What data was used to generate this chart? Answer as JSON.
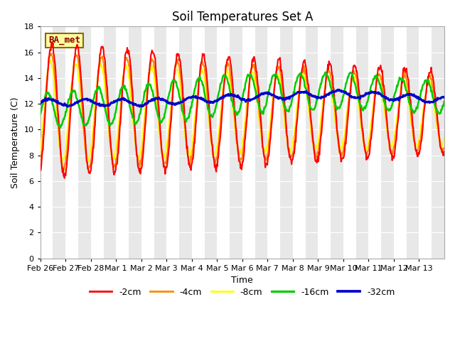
{
  "title": "Soil Temperatures Set A",
  "xlabel": "Time",
  "ylabel": "Soil Temperature (C)",
  "ylim": [
    0,
    18
  ],
  "yticks": [
    0,
    2,
    4,
    6,
    8,
    10,
    12,
    14,
    16,
    18
  ],
  "date_labels": [
    "Feb 26",
    "Feb 27",
    "Feb 28",
    "Mar 1",
    "Mar 2",
    "Mar 3",
    "Mar 4",
    "Mar 5",
    "Mar 6",
    "Mar 7",
    "Mar 8",
    "Mar 9",
    "Mar 10",
    "Mar 11",
    "Mar 12",
    "Mar 13"
  ],
  "site_label": "BA_met",
  "legend_labels": [
    "-2cm",
    "-4cm",
    "-8cm",
    "-16cm",
    "-32cm"
  ],
  "legend_colors": [
    "#ff0000",
    "#ff8800",
    "#ffff00",
    "#00cc00",
    "#0000cc"
  ],
  "line_widths": [
    1.5,
    1.5,
    1.5,
    1.8,
    2.2
  ],
  "bg_color_white": "#ffffff",
  "bg_color_gray": "#e8e8e8",
  "title_fontsize": 12,
  "axis_label_fontsize": 9,
  "tick_fontsize": 8,
  "site_label_fontsize": 9,
  "n_days": 16,
  "points_per_day": 48,
  "band_per_half_day": true
}
